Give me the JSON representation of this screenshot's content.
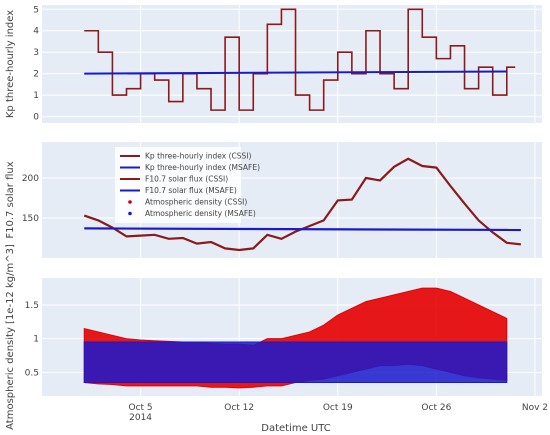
{
  "chart_data": [
    {
      "type": "line",
      "ylabel": "Kp three-hourly index",
      "ylim": [
        -0.3,
        5.2
      ],
      "yticks": [
        0,
        1,
        2,
        3,
        4,
        5
      ],
      "grid": true,
      "series": [
        {
          "name": "Kp three-hourly index (CSSI)",
          "color": "#8B1A1A",
          "shape": "step",
          "x": [
            "2014-10-01",
            "2014-10-02",
            "2014-10-03",
            "2014-10-04",
            "2014-10-05",
            "2014-10-06",
            "2014-10-07",
            "2014-10-08",
            "2014-10-09",
            "2014-10-10",
            "2014-10-11",
            "2014-10-12",
            "2014-10-13",
            "2014-10-14",
            "2014-10-15",
            "2014-10-16",
            "2014-10-17",
            "2014-10-18",
            "2014-10-19",
            "2014-10-20",
            "2014-10-21",
            "2014-10-22",
            "2014-10-23",
            "2014-10-24",
            "2014-10-25",
            "2014-10-26",
            "2014-10-27",
            "2014-10-28",
            "2014-10-29",
            "2014-10-30",
            "2014-10-31"
          ],
          "values": [
            4.0,
            3.0,
            1.0,
            1.3,
            2.0,
            1.7,
            0.7,
            2.0,
            1.3,
            0.3,
            3.7,
            0.3,
            2.0,
            4.3,
            5.0,
            1.0,
            0.3,
            1.7,
            3.0,
            2.0,
            4.0,
            2.0,
            1.3,
            5.0,
            3.7,
            2.7,
            3.3,
            1.3,
            2.3,
            1.0,
            2.3
          ]
        },
        {
          "name": "Kp three-hourly index (MSAFE)",
          "color": "#1a1acc",
          "x": [
            "2014-10-01",
            "2014-10-31"
          ],
          "values": [
            2.0,
            2.1
          ]
        }
      ]
    },
    {
      "type": "line",
      "ylabel": "F10.7 solar flux",
      "ylim": [
        100,
        245
      ],
      "yticks": [
        150,
        200
      ],
      "grid": true,
      "series": [
        {
          "name": "F10.7 solar flux (CSSI)",
          "color": "#8B1A1A",
          "x": [
            "2014-10-01",
            "2014-10-02",
            "2014-10-03",
            "2014-10-04",
            "2014-10-05",
            "2014-10-06",
            "2014-10-07",
            "2014-10-08",
            "2014-10-09",
            "2014-10-10",
            "2014-10-11",
            "2014-10-12",
            "2014-10-13",
            "2014-10-14",
            "2014-10-15",
            "2014-10-16",
            "2014-10-17",
            "2014-10-18",
            "2014-10-19",
            "2014-10-20",
            "2014-10-21",
            "2014-10-22",
            "2014-10-23",
            "2014-10-24",
            "2014-10-25",
            "2014-10-26",
            "2014-10-27",
            "2014-10-28",
            "2014-10-29",
            "2014-10-30",
            "2014-10-31",
            "2014-11-01"
          ],
          "values": [
            153,
            147,
            138,
            127,
            128,
            129,
            124,
            125,
            118,
            120,
            112,
            110,
            112,
            129,
            124,
            133,
            140,
            147,
            172,
            173,
            200,
            197,
            214,
            224,
            215,
            213,
            190,
            168,
            147,
            132,
            119,
            117
          ]
        },
        {
          "name": "F10.7 solar flux (MSAFE)",
          "color": "#1a1acc",
          "x": [
            "2014-10-01",
            "2014-11-01"
          ],
          "values": [
            137,
            135
          ]
        }
      ],
      "legend": {
        "position": "top-left",
        "entries": [
          {
            "label": "Kp three-hourly index (CSSI)",
            "color": "#8B1A1A",
            "kind": "line"
          },
          {
            "label": "Kp three-hourly index (MSAFE)",
            "color": "#1a1acc",
            "kind": "line"
          },
          {
            "label": "F10.7 solar flux (CSSI)",
            "color": "#8B1A1A",
            "kind": "line"
          },
          {
            "label": "F10.7 solar flux (MSAFE)",
            "color": "#1a1acc",
            "kind": "line"
          },
          {
            "label": "Atmospheric density (CSSI)",
            "color": "#cc0000",
            "kind": "marker"
          },
          {
            "label": "Atmospheric density (MSAFE)",
            "color": "#1a1acc",
            "kind": "marker"
          }
        ]
      }
    },
    {
      "type": "area",
      "ylabel": "Atmospheric density [1e-12 kg/m^3]",
      "xlabel": "Datetime UTC",
      "ylim": [
        0.15,
        1.9
      ],
      "yticks": [
        0.5,
        1,
        1.5
      ],
      "xticks": [
        {
          "date": "2014-10-05",
          "label": "Oct 5",
          "sublabel": "2014"
        },
        {
          "date": "2014-10-12",
          "label": "Oct 12"
        },
        {
          "date": "2014-10-19",
          "label": "Oct 19"
        },
        {
          "date": "2014-10-26",
          "label": "Oct 26"
        },
        {
          "date": "2014-11-02",
          "label": "Nov 2"
        }
      ],
      "grid": true,
      "series": [
        {
          "name": "Atmospheric density (CSSI)",
          "color": "#e60000",
          "x": [
            "2014-10-01",
            "2014-10-02",
            "2014-10-03",
            "2014-10-04",
            "2014-10-05",
            "2014-10-06",
            "2014-10-07",
            "2014-10-08",
            "2014-10-09",
            "2014-10-10",
            "2014-10-11",
            "2014-10-12",
            "2014-10-13",
            "2014-10-14",
            "2014-10-15",
            "2014-10-16",
            "2014-10-17",
            "2014-10-18",
            "2014-10-19",
            "2014-10-20",
            "2014-10-21",
            "2014-10-22",
            "2014-10-23",
            "2014-10-24",
            "2014-10-25",
            "2014-10-26",
            "2014-10-27",
            "2014-10-28",
            "2014-10-29",
            "2014-10-30",
            "2014-10-31"
          ],
          "upper": [
            1.15,
            1.1,
            1.05,
            1.0,
            0.98,
            0.97,
            0.96,
            0.95,
            0.94,
            0.93,
            0.92,
            0.92,
            0.9,
            1.0,
            1.0,
            1.05,
            1.1,
            1.2,
            1.35,
            1.45,
            1.55,
            1.6,
            1.65,
            1.7,
            1.75,
            1.75,
            1.7,
            1.6,
            1.5,
            1.4,
            1.3
          ],
          "lower": [
            0.35,
            0.33,
            0.32,
            0.3,
            0.3,
            0.3,
            0.3,
            0.3,
            0.3,
            0.28,
            0.28,
            0.27,
            0.28,
            0.3,
            0.3,
            0.35,
            0.38,
            0.4,
            0.45,
            0.5,
            0.55,
            0.6,
            0.6,
            0.62,
            0.6,
            0.55,
            0.5,
            0.45,
            0.42,
            0.4,
            0.38
          ]
        },
        {
          "name": "Atmospheric density (MSAFE)",
          "color": "#1a1acc",
          "x": [
            "2014-10-01",
            "2014-10-31"
          ],
          "upper": [
            0.95,
            0.95
          ],
          "lower": [
            0.35,
            0.35
          ]
        }
      ]
    }
  ]
}
